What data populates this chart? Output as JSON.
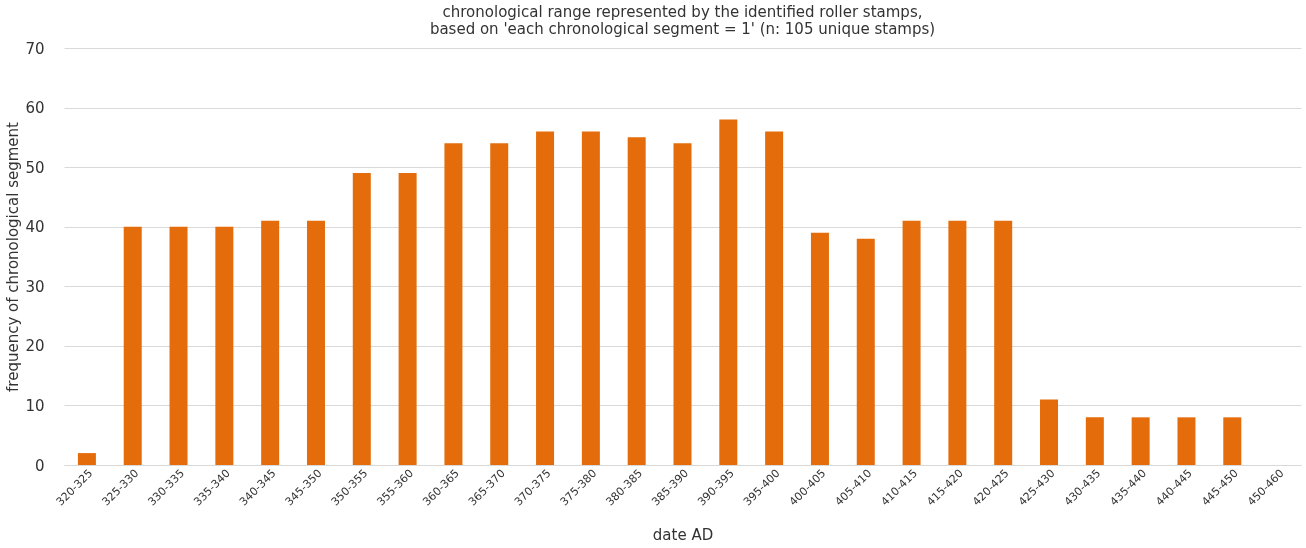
{
  "chart_data": {
    "type": "bar",
    "title": "chronological range represented by the identified roller stamps,\nbased on 'each chronological segment = 1' (n: 105 unique stamps)",
    "xlabel": "date AD",
    "ylabel": "frequency of chronological segment",
    "categories": [
      "320-325",
      "325-330",
      "330-335",
      "335-340",
      "340-345",
      "345-350",
      "350-355",
      "355-360",
      "360-365",
      "365-370",
      "370-375",
      "375-380",
      "380-385",
      "385-390",
      "390-395",
      "395-400",
      "400-405",
      "405-410",
      "410-415",
      "415-420",
      "420-425",
      "425-430",
      "430-435",
      "435-440",
      "440-445",
      "445-450",
      "450-460"
    ],
    "values": [
      2,
      40,
      40,
      40,
      41,
      41,
      49,
      49,
      54,
      54,
      56,
      56,
      55,
      54,
      58,
      56,
      39,
      38,
      41,
      41,
      41,
      11,
      8,
      8,
      8,
      8,
      null
    ],
    "color": "#e46c0a",
    "ylim": [
      0,
      70
    ],
    "yticks": [
      0,
      10,
      20,
      30,
      40,
      50,
      60,
      70
    ],
    "grid": "y"
  }
}
